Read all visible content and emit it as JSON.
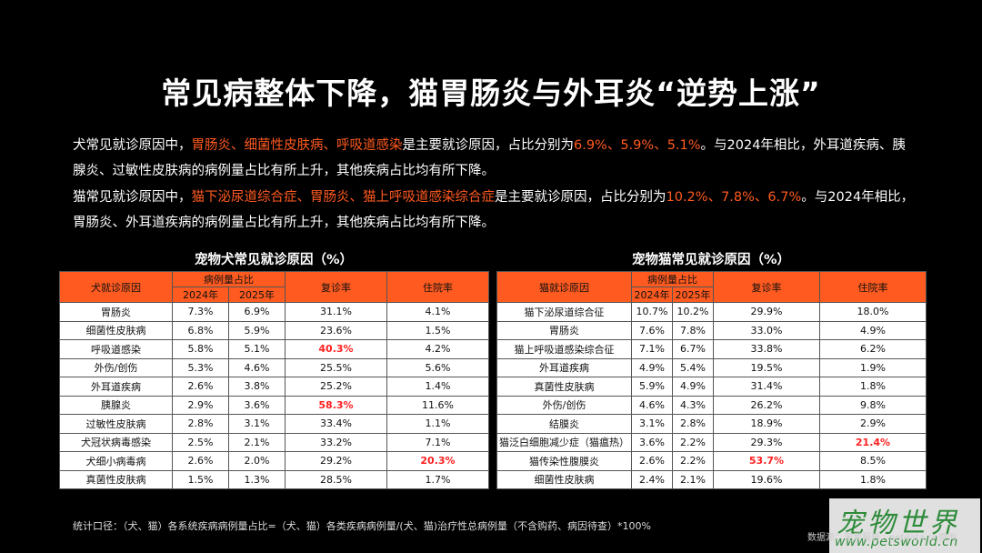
{
  "title": "常见病整体下降，猫胃肠炎与外耳炎“逆势上涨”",
  "dog_paragraph": {
    "prefix": "犬常见就诊原因中，",
    "highlight1": "胃肠炎、细菌性皮肤病、呼吸道感染",
    "mid": "是主要就诊原因，占比分别为",
    "v1": "6.9%",
    "sep1": "、",
    "v2": "5.9%",
    "sep2": "、",
    "v3": "5.1%",
    "suffix": "。与2024年相比，外耳道疾病、胰腺炎、过敏性皮肤病的病例量占比有所上升，其他疾病占比均有所下降。"
  },
  "cat_paragraph": {
    "prefix": "猫常见就诊原因中，",
    "highlight1": "猫下泌尿道综合症、胃肠炎、猫上呼吸道感染综合症",
    "mid": "是主要就诊原因，占比分别为",
    "v1": "10.2%",
    "sep1": "、",
    "v2": "7.8%",
    "sep2": "、",
    "v3": "6.7%",
    "suffix": "。与2024年相比，胃肠炎、外耳道疾病的病例量占比有所上升，其他疾病占比均有所下降。"
  },
  "dog_table": {
    "title": "宠物犬常见就诊原因（%）",
    "headers": {
      "name": "犬就诊原因",
      "group": "病例量占比",
      "y2024": "2024年",
      "y2025": "2025年",
      "revisit": "复诊率",
      "hospital": "住院率"
    },
    "rows": [
      {
        "name": "胃肠炎",
        "y2024": "7.3%",
        "y2025": "6.9%",
        "revisit": "31.1%",
        "hospital": "4.1%"
      },
      {
        "name": "细菌性皮肤病",
        "y2024": "6.8%",
        "y2025": "5.9%",
        "revisit": "23.6%",
        "hospital": "1.5%"
      },
      {
        "name": "呼吸道感染",
        "y2024": "5.8%",
        "y2025": "5.1%",
        "revisit": "40.3%",
        "hospital": "4.2%",
        "red": "revisit"
      },
      {
        "name": "外伤/创伤",
        "y2024": "5.3%",
        "y2025": "4.6%",
        "revisit": "25.5%",
        "hospital": "5.6%"
      },
      {
        "name": "外耳道疾病",
        "y2024": "2.6%",
        "y2025": "3.8%",
        "revisit": "25.2%",
        "hospital": "1.4%"
      },
      {
        "name": "胰腺炎",
        "y2024": "2.9%",
        "y2025": "3.6%",
        "revisit": "58.3%",
        "hospital": "11.6%",
        "red": "revisit"
      },
      {
        "name": "过敏性皮肤病",
        "y2024": "2.8%",
        "y2025": "3.1%",
        "revisit": "33.4%",
        "hospital": "1.1%"
      },
      {
        "name": "犬冠状病毒感染",
        "y2024": "2.5%",
        "y2025": "2.1%",
        "revisit": "33.2%",
        "hospital": "7.1%"
      },
      {
        "name": "犬细小病毒病",
        "y2024": "2.6%",
        "y2025": "2.0%",
        "revisit": "29.2%",
        "hospital": "20.3%",
        "red": "hospital"
      },
      {
        "name": "真菌性皮肤病",
        "y2024": "1.5%",
        "y2025": "1.3%",
        "revisit": "28.5%",
        "hospital": "1.7%"
      }
    ]
  },
  "cat_table": {
    "title": "宠物猫常见就诊原因（%）",
    "headers": {
      "name": "猫就诊原因",
      "group": "病例量占比",
      "y2024": "2024年",
      "y2025": "2025年",
      "revisit": "复诊率",
      "hospital": "住院率"
    },
    "rows": [
      {
        "name": "猫下泌尿道综合征",
        "y2024": "10.7%",
        "y2025": "10.2%",
        "revisit": "29.9%",
        "hospital": "18.0%"
      },
      {
        "name": "胃肠炎",
        "y2024": "7.6%",
        "y2025": "7.8%",
        "revisit": "33.0%",
        "hospital": "4.9%"
      },
      {
        "name": "猫上呼吸道感染综合征",
        "y2024": "7.1%",
        "y2025": "6.7%",
        "revisit": "33.8%",
        "hospital": "6.2%"
      },
      {
        "name": "外耳道疾病",
        "y2024": "4.9%",
        "y2025": "5.4%",
        "revisit": "19.5%",
        "hospital": "1.9%"
      },
      {
        "name": "真菌性皮肤病",
        "y2024": "5.9%",
        "y2025": "4.9%",
        "revisit": "31.4%",
        "hospital": "1.8%"
      },
      {
        "name": "外伤/创伤",
        "y2024": "4.6%",
        "y2025": "4.3%",
        "revisit": "26.2%",
        "hospital": "9.8%"
      },
      {
        "name": "结膜炎",
        "y2024": "3.1%",
        "y2025": "2.8%",
        "revisit": "18.9%",
        "hospital": "2.9%"
      },
      {
        "name": "猫泛白细胞减少症（猫瘟热）",
        "y2024": "3.6%",
        "y2025": "2.2%",
        "revisit": "29.3%",
        "hospital": "21.4%",
        "red": "hospital"
      },
      {
        "name": "猫传染性腹膜炎",
        "y2024": "2.6%",
        "y2025": "2.2%",
        "revisit": "53.7%",
        "hospital": "8.5%",
        "red": "revisit"
      },
      {
        "name": "细菌性皮肤病",
        "y2024": "2.4%",
        "y2025": "2.1%",
        "revisit": "19.6%",
        "hospital": "1.8%"
      }
    ]
  },
  "footnote": "统计口径：（犬、猫）各系统疾病病例量占比=（犬、猫）各类疾病病例量/(犬、猫)治疗性总病例量（不含购药、病因待查）*100%",
  "source": "数据源：宠爱报告，petdata.cn查询",
  "watermark": {
    "main": "宠物世界",
    "url": "www.petsworld.cn"
  },
  "colors": {
    "accent": "#ff5a1f",
    "highlight_red": "#ff2020",
    "background": "#000000"
  }
}
